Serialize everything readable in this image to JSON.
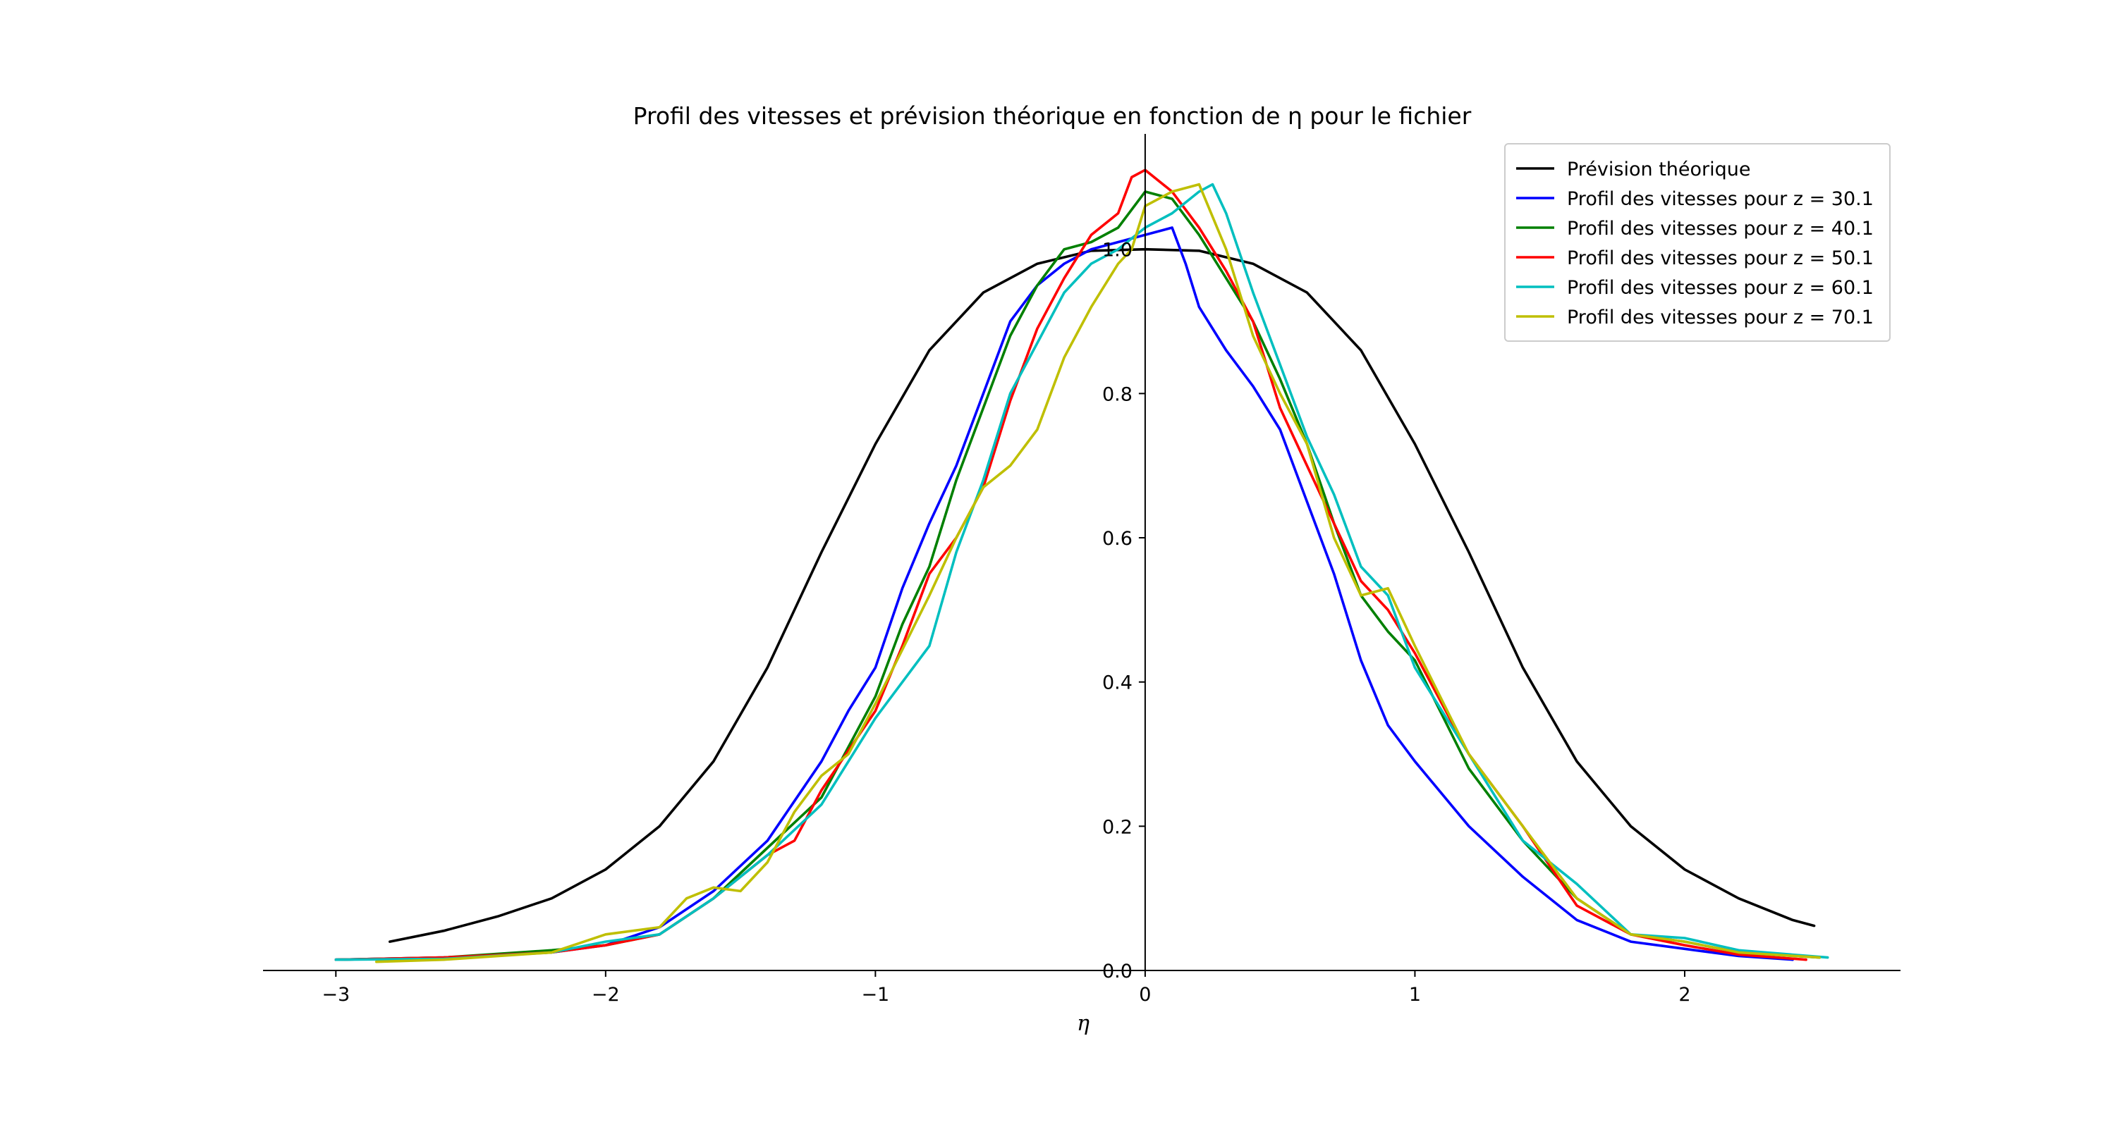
{
  "chart_data": {
    "type": "line",
    "title": "Profil des vitesses et prévision théorique en fonction de η pour le fichier",
    "xlabel": "η",
    "ylabel": "",
    "xlim": [
      -3.27,
      2.8
    ],
    "ylim": [
      0.0,
      1.16
    ],
    "xticks": [
      -3,
      -2,
      -1,
      0,
      1,
      2
    ],
    "xtick_labels": [
      "−3",
      "−2",
      "−1",
      "0",
      "1",
      "2"
    ],
    "yticks": [
      0.0,
      0.2,
      0.4,
      0.6,
      0.8,
      1.0
    ],
    "ytick_labels": [
      "0.0",
      "0.2",
      "0.4",
      "0.6",
      "0.8",
      "1.0"
    ],
    "spines": "centered-y-axis at x=0, x-axis at y=0",
    "legend_position": "upper right",
    "series": [
      {
        "name": "Prévision théorique",
        "color": "#000000",
        "x": [
          -2.8,
          -2.6,
          -2.4,
          -2.2,
          -2.0,
          -1.8,
          -1.6,
          -1.4,
          -1.2,
          -1.0,
          -0.8,
          -0.6,
          -0.4,
          -0.2,
          0.0,
          0.2,
          0.4,
          0.6,
          0.8,
          1.0,
          1.2,
          1.4,
          1.6,
          1.8,
          2.0,
          2.2,
          2.4,
          2.48
        ],
        "y": [
          0.04,
          0.055,
          0.075,
          0.1,
          0.14,
          0.2,
          0.29,
          0.42,
          0.58,
          0.73,
          0.86,
          0.94,
          0.98,
          0.998,
          1.0,
          0.998,
          0.98,
          0.94,
          0.86,
          0.73,
          0.58,
          0.42,
          0.29,
          0.2,
          0.14,
          0.1,
          0.07,
          0.062
        ]
      },
      {
        "name": "Profil des vitesses pour z = 30.1",
        "color": "#0000ff",
        "x": [
          -3.0,
          -2.6,
          -2.2,
          -2.0,
          -1.8,
          -1.6,
          -1.4,
          -1.2,
          -1.1,
          -1.0,
          -0.9,
          -0.8,
          -0.7,
          -0.6,
          -0.5,
          -0.4,
          -0.3,
          -0.2,
          -0.1,
          0.0,
          0.1,
          0.15,
          0.2,
          0.3,
          0.4,
          0.5,
          0.6,
          0.7,
          0.8,
          0.9,
          1.0,
          1.2,
          1.4,
          1.6,
          1.8,
          2.0,
          2.2,
          2.4
        ],
        "y": [
          0.015,
          0.018,
          0.025,
          0.035,
          0.06,
          0.11,
          0.18,
          0.29,
          0.36,
          0.42,
          0.53,
          0.62,
          0.7,
          0.8,
          0.9,
          0.95,
          0.98,
          1.0,
          1.01,
          1.02,
          1.03,
          0.98,
          0.92,
          0.86,
          0.81,
          0.75,
          0.65,
          0.55,
          0.43,
          0.34,
          0.29,
          0.2,
          0.13,
          0.07,
          0.04,
          0.03,
          0.02,
          0.015
        ]
      },
      {
        "name": "Profil des vitesses pour z = 40.1",
        "color": "#008000",
        "x": [
          -3.0,
          -2.6,
          -2.2,
          -2.0,
          -1.8,
          -1.6,
          -1.4,
          -1.2,
          -1.0,
          -0.9,
          -0.8,
          -0.7,
          -0.6,
          -0.5,
          -0.4,
          -0.3,
          -0.2,
          -0.1,
          0.0,
          0.1,
          0.2,
          0.3,
          0.4,
          0.5,
          0.6,
          0.7,
          0.8,
          0.9,
          1.0,
          1.2,
          1.4,
          1.6,
          1.8,
          2.0,
          2.2,
          2.5
        ],
        "y": [
          0.015,
          0.018,
          0.028,
          0.035,
          0.05,
          0.1,
          0.17,
          0.24,
          0.38,
          0.48,
          0.56,
          0.68,
          0.78,
          0.88,
          0.95,
          1.0,
          1.01,
          1.03,
          1.08,
          1.07,
          1.02,
          0.96,
          0.9,
          0.82,
          0.73,
          0.62,
          0.52,
          0.47,
          0.43,
          0.28,
          0.18,
          0.1,
          0.05,
          0.04,
          0.025,
          0.018
        ]
      },
      {
        "name": "Profil des vitesses pour z = 50.1",
        "color": "#ff0000",
        "x": [
          -3.0,
          -2.6,
          -2.2,
          -2.0,
          -1.8,
          -1.6,
          -1.4,
          -1.3,
          -1.2,
          -1.0,
          -0.9,
          -0.8,
          -0.7,
          -0.6,
          -0.5,
          -0.4,
          -0.3,
          -0.2,
          -0.1,
          -0.05,
          0.0,
          0.1,
          0.2,
          0.3,
          0.4,
          0.5,
          0.6,
          0.7,
          0.8,
          0.9,
          1.0,
          1.2,
          1.4,
          1.6,
          1.8,
          2.0,
          2.2,
          2.45
        ],
        "y": [
          0.015,
          0.018,
          0.025,
          0.035,
          0.05,
          0.1,
          0.16,
          0.18,
          0.25,
          0.36,
          0.45,
          0.55,
          0.6,
          0.67,
          0.79,
          0.89,
          0.96,
          1.02,
          1.05,
          1.1,
          1.11,
          1.08,
          1.03,
          0.97,
          0.9,
          0.78,
          0.7,
          0.62,
          0.54,
          0.5,
          0.44,
          0.3,
          0.2,
          0.09,
          0.05,
          0.035,
          0.022,
          0.015
        ]
      },
      {
        "name": "Profil des vitesses pour z = 60.1",
        "color": "#00bfbf",
        "x": [
          -3.0,
          -2.6,
          -2.2,
          -2.0,
          -1.8,
          -1.6,
          -1.4,
          -1.2,
          -1.0,
          -0.8,
          -0.7,
          -0.6,
          -0.5,
          -0.4,
          -0.3,
          -0.2,
          -0.1,
          0.0,
          0.1,
          0.2,
          0.25,
          0.3,
          0.4,
          0.5,
          0.6,
          0.7,
          0.8,
          0.9,
          1.0,
          1.2,
          1.4,
          1.6,
          1.8,
          2.0,
          2.2,
          2.53
        ],
        "y": [
          0.015,
          0.016,
          0.025,
          0.04,
          0.05,
          0.1,
          0.16,
          0.23,
          0.35,
          0.45,
          0.58,
          0.68,
          0.8,
          0.87,
          0.94,
          0.98,
          1.0,
          1.03,
          1.05,
          1.08,
          1.09,
          1.05,
          0.94,
          0.84,
          0.74,
          0.66,
          0.56,
          0.52,
          0.42,
          0.3,
          0.18,
          0.12,
          0.05,
          0.045,
          0.028,
          0.018
        ]
      },
      {
        "name": "Profil des vitesses pour z = 70.1",
        "color": "#bfbf00",
        "x": [
          -2.85,
          -2.6,
          -2.2,
          -2.0,
          -1.8,
          -1.7,
          -1.6,
          -1.5,
          -1.4,
          -1.3,
          -1.2,
          -1.1,
          -1.0,
          -0.8,
          -0.7,
          -0.6,
          -0.5,
          -0.4,
          -0.3,
          -0.2,
          -0.1,
          -0.05,
          0.0,
          0.1,
          0.2,
          0.3,
          0.4,
          0.5,
          0.6,
          0.7,
          0.8,
          0.9,
          1.0,
          1.2,
          1.4,
          1.6,
          1.8,
          2.0,
          2.2,
          2.5
        ],
        "y": [
          0.012,
          0.015,
          0.025,
          0.05,
          0.06,
          0.1,
          0.115,
          0.11,
          0.15,
          0.22,
          0.27,
          0.3,
          0.37,
          0.52,
          0.6,
          0.67,
          0.7,
          0.75,
          0.85,
          0.92,
          0.98,
          1.0,
          1.06,
          1.08,
          1.09,
          1.0,
          0.88,
          0.8,
          0.73,
          0.6,
          0.52,
          0.53,
          0.45,
          0.3,
          0.2,
          0.1,
          0.05,
          0.04,
          0.025,
          0.018
        ]
      }
    ]
  }
}
